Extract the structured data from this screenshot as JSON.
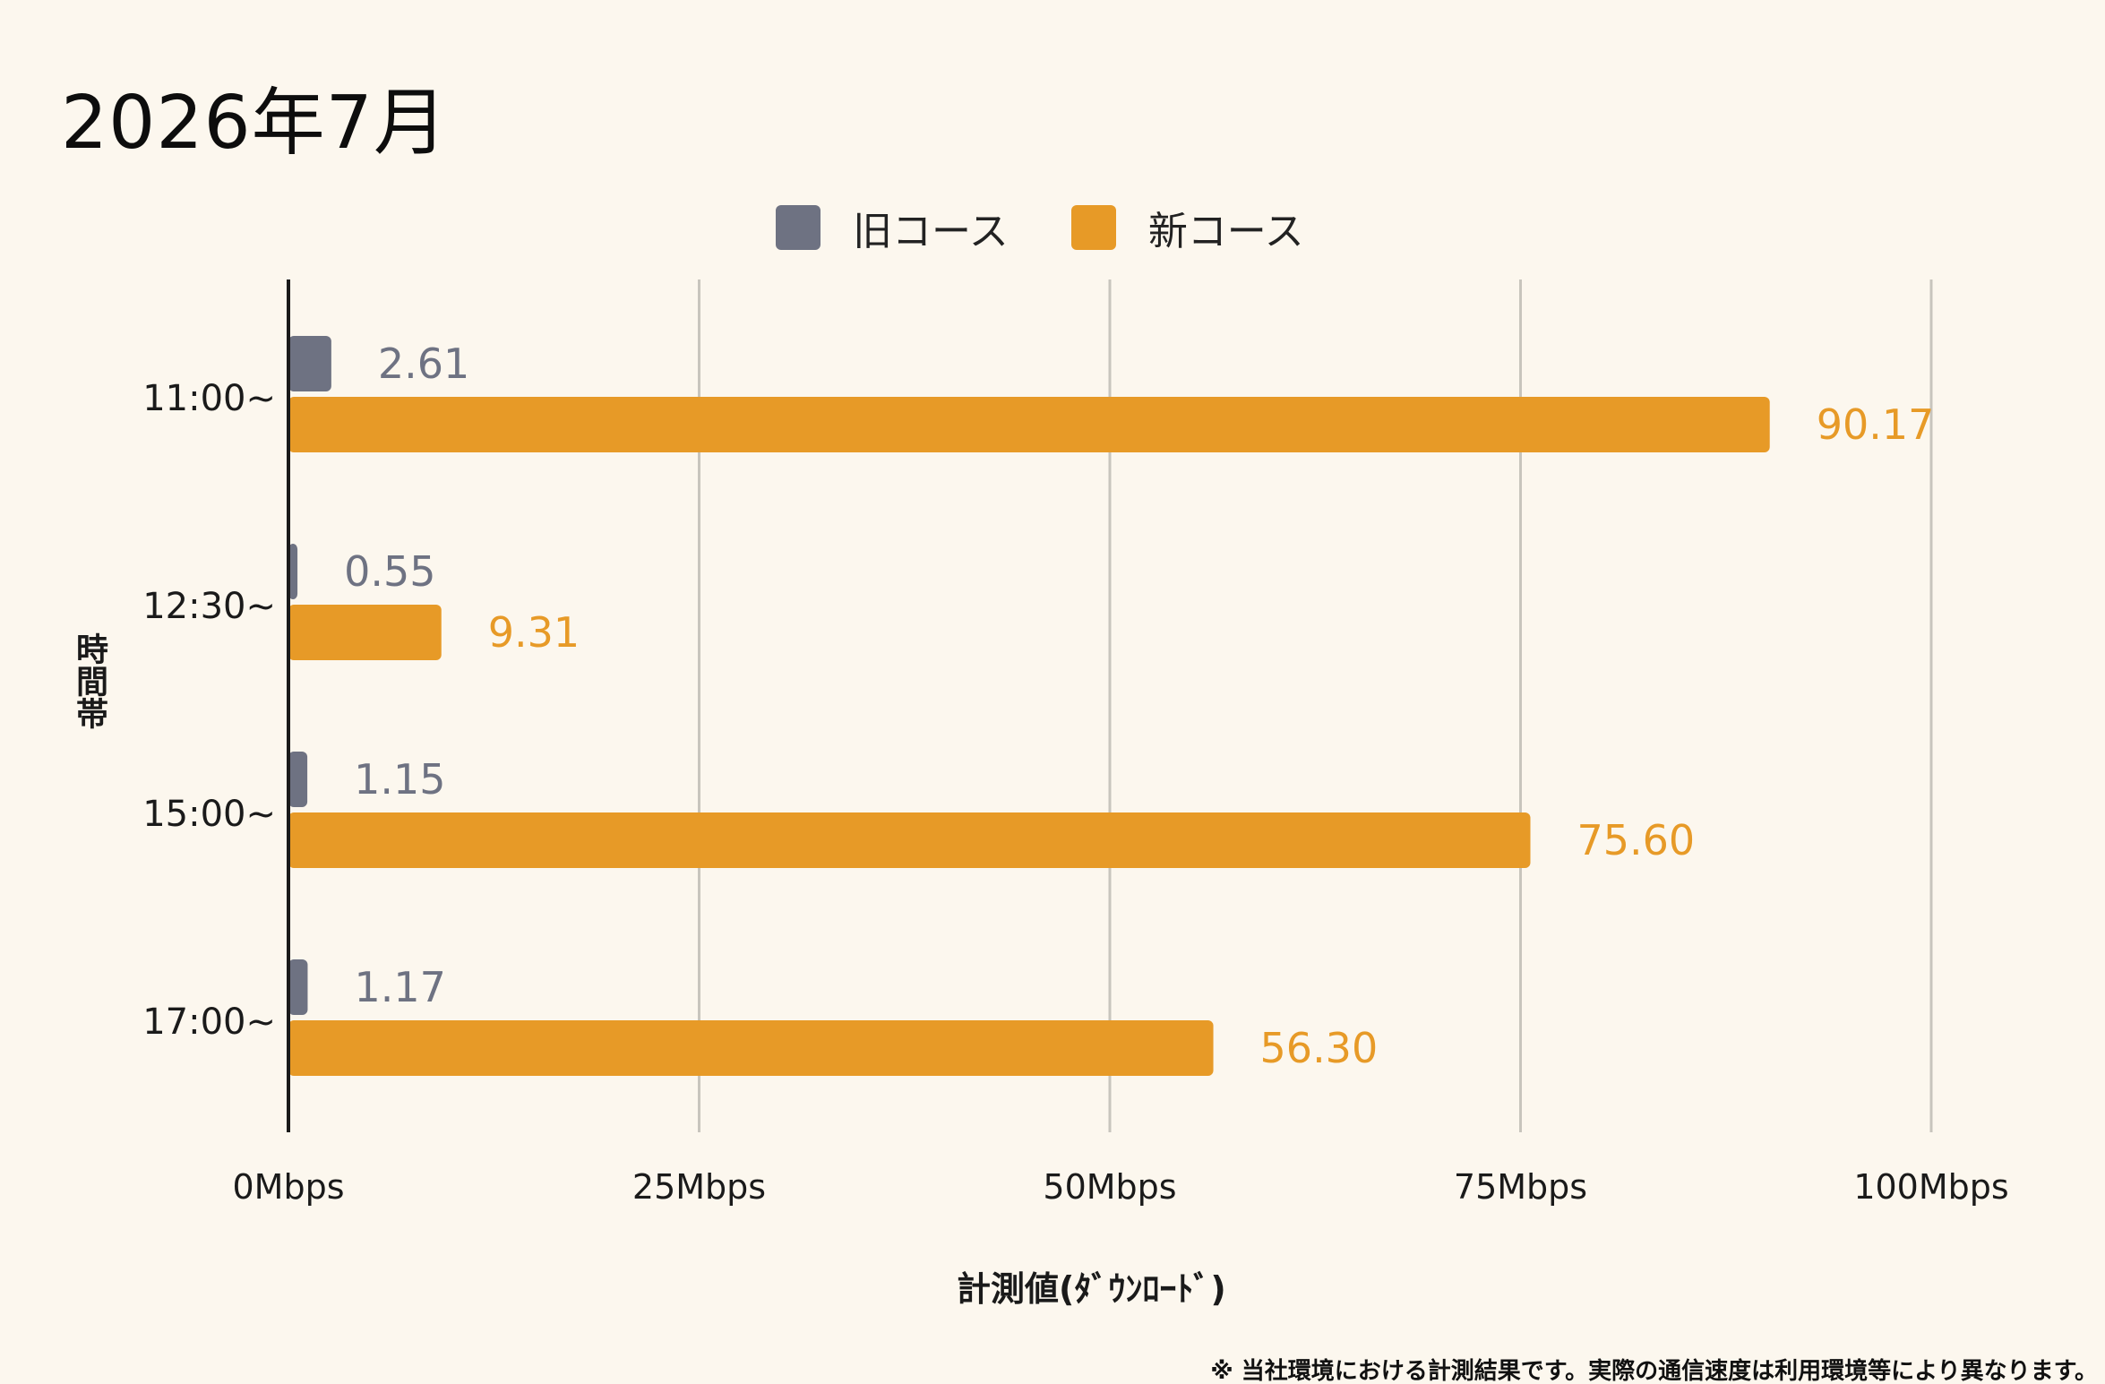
{
  "chart_data": {
    "type": "bar",
    "orientation": "horizontal",
    "title": "2026年7月",
    "categories": [
      "11:00~",
      "12:30~",
      "15:00~",
      "17:00~"
    ],
    "series": [
      {
        "name": "旧コース",
        "color": "#6e7282",
        "values": [
          2.61,
          0.55,
          1.15,
          1.17
        ],
        "labels": [
          "2.61",
          "0.55",
          "1.15",
          "1.17"
        ]
      },
      {
        "name": "新コース",
        "color": "#e79a27",
        "values": [
          90.17,
          9.31,
          75.6,
          56.3
        ],
        "labels": [
          "90.17",
          "9.31",
          "75.60",
          "56.30"
        ]
      }
    ],
    "xlim": [
      0,
      100
    ],
    "x_ticks": [
      0,
      25,
      50,
      75,
      100
    ],
    "x_tick_labels": [
      "0Mbps",
      "25Mbps",
      "50Mbps",
      "75Mbps",
      "100Mbps"
    ],
    "xlabel": "計測値(ﾀﾞｳﾝﾛｰﾄﾞ)",
    "ylabel": "時間帯",
    "grid": "vertical",
    "legend_position": "top-center"
  },
  "footnote": "※ 当社環境における計測結果です。実際の通信速度は利用環境等により異なります。",
  "colors": {
    "background": "#fcf7ee",
    "gridline": "#c8c5bd",
    "axis": "#1a1a1a"
  }
}
